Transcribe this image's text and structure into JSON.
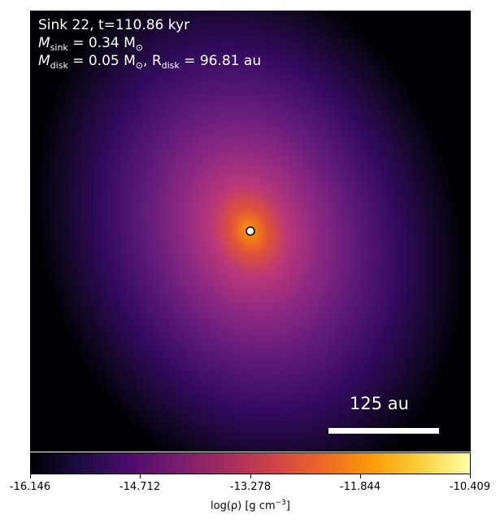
{
  "header": {
    "line1": "Sink 22, t=110.86 kyr",
    "msink_symbol": "M",
    "msink_sub": "sink",
    "msink_value": " = 0.34 M",
    "msink_unit_sub": "⊙",
    "mdisk_symbol": "M",
    "mdisk_sub": "disk",
    "mdisk_value": " = 0.05 M",
    "mdisk_unit_sub": "⊙",
    "rdisk_sep": ", R",
    "rdisk_sub": "disk",
    "rdisk_value": " = 96.81 au"
  },
  "scale_bar": {
    "label": "125 au"
  },
  "colorbar": {
    "colormap": "inferno",
    "ticks": [
      "-16.146",
      "-14.712",
      "-13.278",
      "-11.844",
      "-10.409"
    ],
    "label_prefix": "log(ρ) [g cm",
    "label_exp": "−3",
    "label_suffix": "]"
  },
  "colors": {
    "inferno": [
      "#000004",
      "#1b0c41",
      "#4a0c6b",
      "#781c6d",
      "#a52c60",
      "#cf4446",
      "#ed6925",
      "#fb9b06",
      "#f7d13d",
      "#fcffa4"
    ]
  }
}
